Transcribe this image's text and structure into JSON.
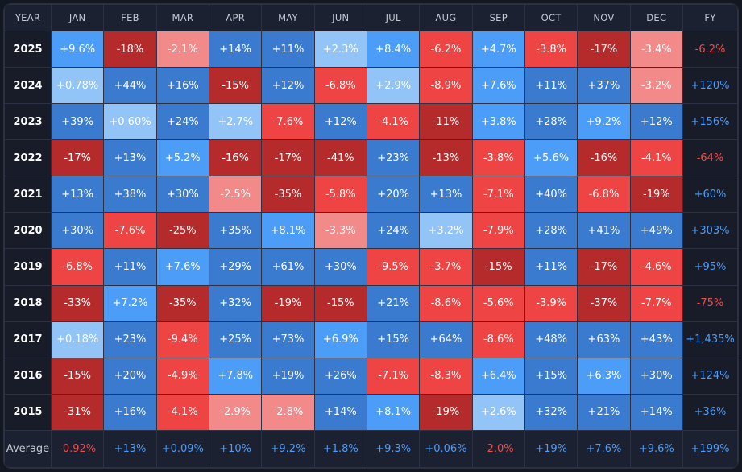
{
  "chart_data": {
    "type": "heatmap",
    "columns": [
      "YEAR",
      "JAN",
      "FEB",
      "MAR",
      "APR",
      "MAY",
      "JUN",
      "JUL",
      "AUG",
      "SEP",
      "OCT",
      "NOV",
      "DEC",
      "FY"
    ],
    "rows": [
      {
        "year": "2025",
        "months": [
          "+9.6%",
          "-18%",
          "-2.1%",
          "+14%",
          "+11%",
          "+2.3%",
          "+8.4%",
          "-6.2%",
          "+4.7%",
          "-3.8%",
          "-17%",
          "-3.4%"
        ],
        "fy": "-6.2%"
      },
      {
        "year": "2024",
        "months": [
          "+0.78%",
          "+44%",
          "+16%",
          "-15%",
          "+12%",
          "-6.8%",
          "+2.9%",
          "-8.9%",
          "+7.6%",
          "+11%",
          "+37%",
          "-3.2%"
        ],
        "fy": "+120%"
      },
      {
        "year": "2023",
        "months": [
          "+39%",
          "+0.60%",
          "+24%",
          "+2.7%",
          "-7.6%",
          "+12%",
          "-4.1%",
          "-11%",
          "+3.8%",
          "+28%",
          "+9.2%",
          "+12%"
        ],
        "fy": "+156%"
      },
      {
        "year": "2022",
        "months": [
          "-17%",
          "+13%",
          "+5.2%",
          "-16%",
          "-17%",
          "-41%",
          "+23%",
          "-13%",
          "-3.8%",
          "+5.6%",
          "-16%",
          "-4.1%"
        ],
        "fy": "-64%"
      },
      {
        "year": "2021",
        "months": [
          "+13%",
          "+38%",
          "+30%",
          "-2.5%",
          "-35%",
          "-5.8%",
          "+20%",
          "+13%",
          "-7.1%",
          "+40%",
          "-6.8%",
          "-19%"
        ],
        "fy": "+60%"
      },
      {
        "year": "2020",
        "months": [
          "+30%",
          "-7.6%",
          "-25%",
          "+35%",
          "+8.1%",
          "-3.3%",
          "+24%",
          "+3.2%",
          "-7.9%",
          "+28%",
          "+41%",
          "+49%"
        ],
        "fy": "+303%"
      },
      {
        "year": "2019",
        "months": [
          "-6.8%",
          "+11%",
          "+7.6%",
          "+29%",
          "+61%",
          "+30%",
          "-9.5%",
          "-3.7%",
          "-15%",
          "+11%",
          "-17%",
          "-4.6%"
        ],
        "fy": "+95%"
      },
      {
        "year": "2018",
        "months": [
          "-33%",
          "+7.2%",
          "-35%",
          "+32%",
          "-19%",
          "-15%",
          "+21%",
          "-8.6%",
          "-5.6%",
          "-3.9%",
          "-37%",
          "-7.7%"
        ],
        "fy": "-75%"
      },
      {
        "year": "2017",
        "months": [
          "+0.18%",
          "+23%",
          "-9.4%",
          "+25%",
          "+73%",
          "+6.9%",
          "+15%",
          "+64%",
          "-8.6%",
          "+48%",
          "+63%",
          "+43%"
        ],
        "fy": "+1,435%"
      },
      {
        "year": "2016",
        "months": [
          "-15%",
          "+20%",
          "-4.9%",
          "+7.8%",
          "+19%",
          "+26%",
          "-7.1%",
          "-8.3%",
          "+6.4%",
          "+15%",
          "+6.3%",
          "+30%"
        ],
        "fy": "+124%"
      },
      {
        "year": "2015",
        "months": [
          "-31%",
          "+16%",
          "-4.1%",
          "-2.9%",
          "-2.8%",
          "+14%",
          "+8.1%",
          "-19%",
          "+2.6%",
          "+32%",
          "+21%",
          "+14%"
        ],
        "fy": "+36%"
      }
    ],
    "average": {
      "label": "Average",
      "months": [
        "-0.92%",
        "+13%",
        "+0.09%",
        "+10%",
        "+9.2%",
        "+1.8%",
        "+9.3%",
        "+0.06%",
        "-2.0%",
        "+19%",
        "+7.6%",
        "+9.6%"
      ],
      "fy": "+199%"
    },
    "colors": {
      "pos_light": "#93c4f8",
      "pos_bright": "#4c9df7",
      "pos_mid": "#3a7bd0",
      "neg_light": "#f38a8a",
      "neg_bright": "#ee4444",
      "neg_dark": "#b52a2a",
      "pos_text": "#4e9cf7",
      "neg_text": "#f24b4b"
    }
  }
}
